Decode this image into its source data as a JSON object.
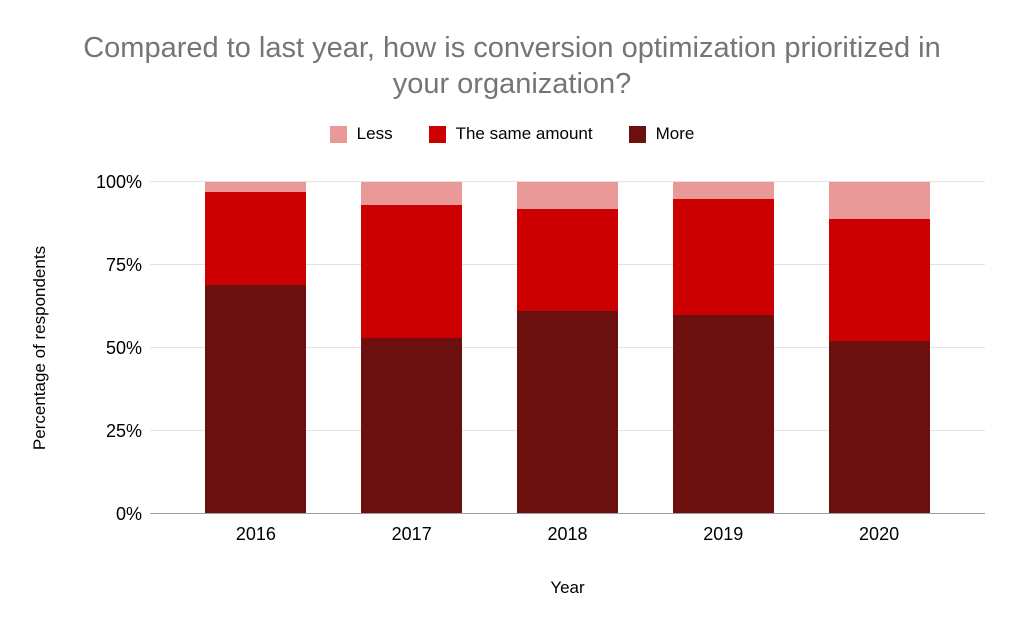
{
  "title": "Compared to last year, how is conversion optimization prioritized in your organization?",
  "chart_data": {
    "type": "bar",
    "stacked": true,
    "title": "Compared to last year, how is conversion optimization prioritized in your organization?",
    "xlabel": "Year",
    "ylabel": "Percentage of respondents",
    "ylim": [
      0,
      100
    ],
    "yticks": [
      "0%",
      "25%",
      "50%",
      "75%",
      "100%"
    ],
    "grid": true,
    "legend_position": "top",
    "categories": [
      "2016",
      "2017",
      "2018",
      "2019",
      "2020"
    ],
    "series": [
      {
        "name": "Less",
        "color": "#ea9999",
        "values": [
          3,
          7,
          8,
          5,
          11
        ]
      },
      {
        "name": "The same amount",
        "color": "#cc0000",
        "values": [
          28,
          40,
          31,
          35,
          37
        ]
      },
      {
        "name": "More",
        "color": "#6b0f0f",
        "values": [
          69,
          53,
          61,
          60,
          52
        ]
      }
    ]
  },
  "colors": {
    "title_text": "#757575",
    "gridline": "#e3e3e3",
    "axis_line": "#9e9e9e"
  }
}
